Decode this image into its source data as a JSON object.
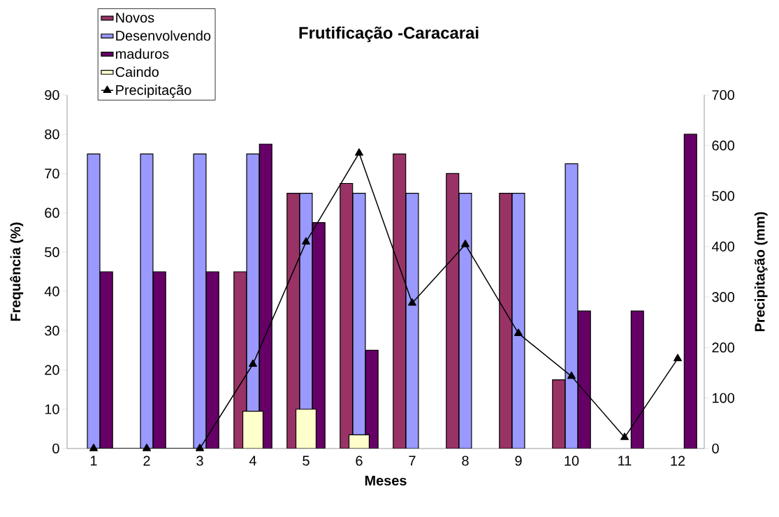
{
  "chart_data": {
    "type": "bar",
    "title": "Frutificação -Caracarai",
    "xlabel": "Meses",
    "ylabel": "Frequência (%)",
    "y2label": "Precipitação (mm)",
    "categories": [
      "1",
      "2",
      "3",
      "4",
      "5",
      "6",
      "7",
      "8",
      "9",
      "10",
      "11",
      "12"
    ],
    "series": [
      {
        "name": "Novos",
        "color": "#993366",
        "values": [
          null,
          null,
          null,
          45,
          65,
          67.5,
          75,
          70,
          65,
          17.5,
          null,
          null
        ]
      },
      {
        "name": "Desenvolvendo",
        "color": "#9999ff",
        "values": [
          75,
          75,
          75,
          75,
          65,
          65,
          65,
          65,
          65,
          72.5,
          null,
          null
        ]
      },
      {
        "name": "maduros",
        "color": "#660066",
        "values": [
          45,
          45,
          45,
          77.5,
          57.5,
          25,
          null,
          null,
          null,
          35,
          35,
          80
        ]
      },
      {
        "name": "Caindo",
        "color": "#ffffcc",
        "values": [
          null,
          null,
          null,
          9.5,
          10,
          3.5,
          null,
          null,
          null,
          null,
          null,
          null
        ]
      },
      {
        "name": "Precipitação",
        "type": "line",
        "axis": "y2",
        "color": "#000000",
        "marker": "triangle",
        "line_style": "solid",
        "values": [
          0,
          0,
          0,
          167,
          409,
          585,
          288,
          404,
          228,
          143,
          22,
          178
        ]
      }
    ],
    "ylim": [
      0,
      90
    ],
    "yticks": [
      0,
      10,
      20,
      30,
      40,
      50,
      60,
      70,
      80,
      90
    ],
    "y2lim": [
      0,
      700
    ],
    "y2ticks": [
      0,
      100,
      200,
      300,
      400,
      500,
      600,
      700
    ],
    "legend": "top left"
  }
}
